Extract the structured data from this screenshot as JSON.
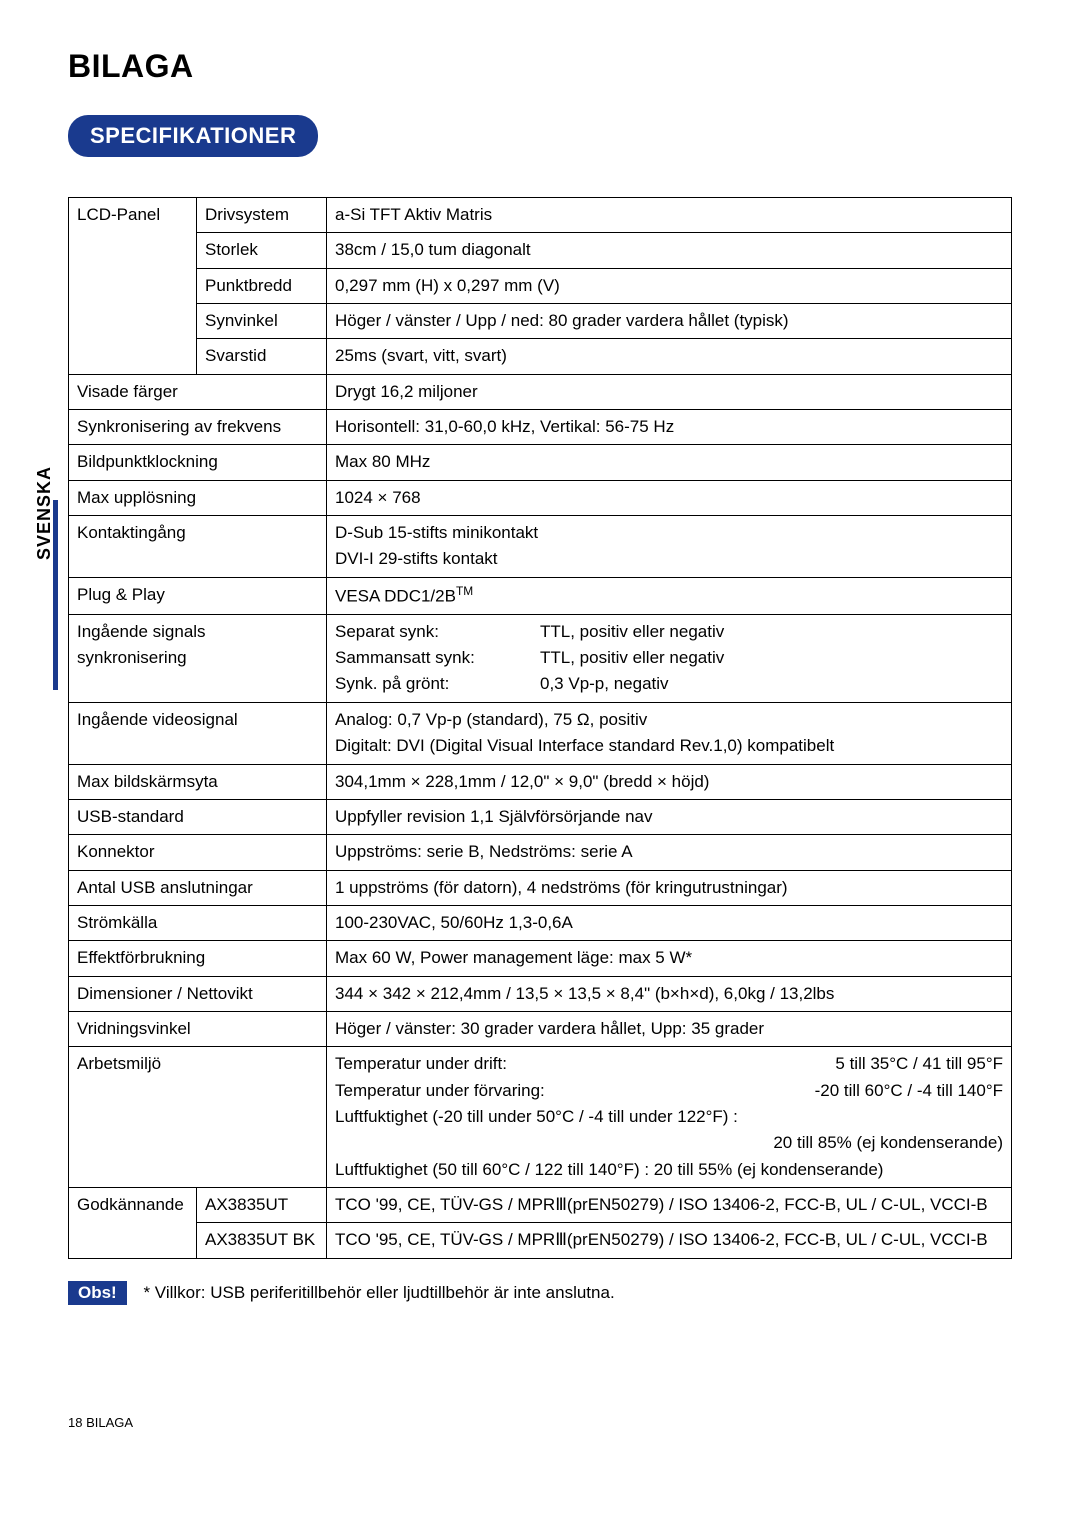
{
  "page": {
    "title": "BILAGA",
    "section": "SPECIFIKATIONER",
    "sideTab": "SVENSKA",
    "footer": "18     BILAGA",
    "note": {
      "label": "Obs!",
      "text": "* Villkor: USB periferitillbehör eller ljudtillbehör är inte anslutna."
    },
    "colors": {
      "accent": "#1a3a8e",
      "text": "#000000",
      "bg": "#ffffff"
    }
  },
  "spec": {
    "lcdPanel": {
      "label": "LCD-Panel",
      "rows": [
        {
          "k": "Drivsystem",
          "v": "a-Si TFT Aktiv Matris"
        },
        {
          "k": "Storlek",
          "v": "38cm / 15,0 tum diagonalt"
        },
        {
          "k": "Punktbredd",
          "v": "0,297 mm (H) x 0,297 mm (V)"
        },
        {
          "k": "Synvinkel",
          "v": "Höger / vänster / Upp / ned: 80 grader vardera hållet (typisk)"
        },
        {
          "k": "Svarstid",
          "v": "25ms (svart, vitt, svart)"
        }
      ]
    },
    "rows": {
      "visadeFarger": {
        "k": "Visade färger",
        "v": "Drygt 16,2 miljoner"
      },
      "synkFrekvens": {
        "k": "Synkronisering av frekvens",
        "v": "Horisontell: 31,0-60,0 kHz, Vertikal: 56-75 Hz"
      },
      "bildpunkt": {
        "k": "Bildpunktklockning",
        "v": "Max 80 MHz"
      },
      "maxUpp": {
        "k": "Max upplösning",
        "v": "1024 × 768"
      },
      "kontakt": {
        "k": "Kontaktingång",
        "v1": "D-Sub 15-stifts minikontakt",
        "v2": "DVI-I 29-stifts kontakt"
      },
      "plugPlay": {
        "k": "Plug & Play",
        "v": "VESA DDC1/2B",
        "tm": "TM"
      },
      "inSignal": {
        "k1": "Ingående signals",
        "k2": "synkronisering",
        "l1": "Separat synk:",
        "r1": "TTL, positiv eller negativ",
        "l2": "Sammansatt synk:",
        "r2": "TTL, positiv eller negativ",
        "l3": "Synk. på grönt:",
        "r3": "0,3 Vp-p, negativ"
      },
      "inVideo": {
        "k": "Ingående videosignal",
        "v1": "Analog: 0,7 Vp-p (standard), 75 Ω, positiv",
        "v2": "Digitalt:  DVI (Digital Visual Interface standard Rev.1,0) kompatibelt"
      },
      "maxBild": {
        "k": "Max bildskärmsyta",
        "v": "304,1mm × 228,1mm / 12,0\" × 9,0\" (bredd × höjd)"
      },
      "usbStd": {
        "k": "USB-standard",
        "v": "Uppfyller revision 1,1    Självförsörjande nav"
      },
      "konnektor": {
        "k": "Konnektor",
        "v": "Uppströms: serie B, Nedströms: serie A"
      },
      "antalUsb": {
        "k": "Antal USB anslutningar",
        "v": "1 uppströms (för datorn), 4 nedströms (för kringutrustningar)"
      },
      "strom": {
        "k": "Strömkälla",
        "v": "100-230VAC, 50/60Hz 1,3-0,6A"
      },
      "effekt": {
        "k": "Effektförbrukning",
        "v": "Max 60 W, Power management läge: max 5 W*"
      },
      "dim": {
        "k": "Dimensioner / Nettovikt",
        "v": "344 × 342 × 212,4mm / 13,5 × 13,5 × 8,4\" (b×h×d), 6,0kg / 13,2lbs"
      },
      "vrid": {
        "k": "Vridningsvinkel",
        "v": "Höger / vänster: 30 grader vardera hållet, Upp: 35 grader"
      },
      "arbets": {
        "k": "Arbetsmiljö",
        "l1": "Temperatur under drift:",
        "r1": "5 till 35°C / 41 till 95°F",
        "l2": "Temperatur under förvaring:",
        "r2": "-20 till 60°C / -4 till 140°F",
        "l3": "Luftfuktighet (-20 till under 50°C / -4 till under 122°F) :",
        "r3": "20 till 85% (ej kondenserande)",
        "l4": "Luftfuktighet (50 till 60°C / 122 till 140°F) : 20 till 55% (ej kondenserande)"
      }
    },
    "godk": {
      "label": "Godkännande",
      "rows": [
        {
          "k": "AX3835UT",
          "v": "TCO '99, CE, TÜV-GS / MPRⅢ(prEN50279) / ISO 13406-2, FCC-B, UL / C-UL, VCCI-B"
        },
        {
          "k": "AX3835UT BK",
          "v": "TCO '95, CE, TÜV-GS / MPRⅢ(prEN50279) / ISO 13406-2, FCC-B, UL / C-UL, VCCI-B"
        }
      ]
    }
  }
}
